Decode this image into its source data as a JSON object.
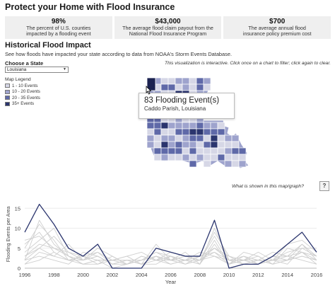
{
  "page_title": "Protect your Home with Flood Insurance",
  "stats": [
    {
      "value": "98%",
      "desc_line1": "The percent of U.S. counties",
      "desc_line2": "impacted by a flooding event"
    },
    {
      "value": "$43,000",
      "desc_line1": "The average flood claim payout from the",
      "desc_line2": "National Flood Insurance Program"
    },
    {
      "value": "$700",
      "desc_line1": "The average annual flood",
      "desc_line2": "insurance policy premium cost"
    }
  ],
  "section": {
    "title": "Historical Flood Impact",
    "subtitle": "See how floods have impacted your state according to data from NOAA's Storm Events Database."
  },
  "state_picker": {
    "label": "Choose a State",
    "selected": "Louisiana"
  },
  "interactive_note": "This visualization is interactive. Click once on a chart to filter; click again to clear.",
  "legend": {
    "title": "Map Legend",
    "items": [
      {
        "label": "1 - 10 Events",
        "color": "#d6d7e6"
      },
      {
        "label": "10 - 20 Events",
        "color": "#9ea3cd"
      },
      {
        "label": "20 - 35 Events",
        "color": "#5f69a8"
      },
      {
        "label": "35+ Events",
        "color": "#2b356e"
      }
    ]
  },
  "tooltip": {
    "main": "83 Flooding Event(s)",
    "sub": "Caddo Parish, Louisiana"
  },
  "help": {
    "text": "What is shown in this map/graph?",
    "icon_label": "?"
  },
  "chart_data": {
    "type": "line",
    "xlabel": "Year",
    "ylabel": "Flooding Events per Area",
    "ylim": [
      0,
      17
    ],
    "yticks": [
      0,
      5,
      10,
      15
    ],
    "xticks": [
      1996,
      1998,
      2000,
      2002,
      2004,
      2006,
      2008,
      2010,
      2012,
      2014,
      2016
    ],
    "x": [
      1996,
      1997,
      1998,
      1999,
      2000,
      2001,
      2002,
      2003,
      2004,
      2005,
      2006,
      2007,
      2008,
      2009,
      2010,
      2011,
      2012,
      2013,
      2014,
      2015,
      2016
    ],
    "highlight_color": "#2b356e",
    "background_color": "#cfcfcf",
    "series": [
      {
        "highlight": true,
        "values": [
          9,
          16,
          11,
          5,
          3,
          6,
          0,
          0,
          0,
          5,
          4,
          3,
          3,
          12,
          0,
          1,
          1,
          3,
          6,
          9,
          4
        ]
      },
      {
        "values": [
          3,
          5,
          8,
          4,
          2,
          3,
          1,
          2,
          1,
          3,
          2,
          1,
          2,
          5,
          2,
          3,
          1,
          2,
          3,
          4,
          3
        ]
      },
      {
        "values": [
          2,
          12,
          6,
          3,
          1,
          2,
          0,
          1,
          2,
          4,
          3,
          2,
          1,
          7,
          1,
          2,
          2,
          1,
          2,
          3,
          2
        ]
      },
      {
        "values": [
          6,
          9,
          4,
          2,
          3,
          1,
          2,
          3,
          1,
          2,
          4,
          3,
          2,
          9,
          3,
          1,
          2,
          2,
          4,
          5,
          5
        ]
      },
      {
        "values": [
          1,
          4,
          3,
          6,
          2,
          4,
          1,
          1,
          3,
          2,
          1,
          2,
          3,
          4,
          2,
          2,
          1,
          3,
          2,
          6,
          3
        ]
      },
      {
        "values": [
          4,
          7,
          10,
          3,
          1,
          2,
          2,
          2,
          2,
          3,
          2,
          4,
          1,
          6,
          1,
          4,
          3,
          1,
          5,
          4,
          2
        ]
      },
      {
        "values": [
          2,
          3,
          2,
          1,
          4,
          3,
          1,
          2,
          1,
          1,
          3,
          2,
          4,
          3,
          2,
          1,
          2,
          4,
          3,
          2,
          1
        ]
      },
      {
        "values": [
          5,
          11,
          7,
          2,
          2,
          5,
          3,
          1,
          2,
          4,
          2,
          3,
          2,
          8,
          2,
          2,
          1,
          2,
          6,
          7,
          4
        ]
      },
      {
        "values": [
          3,
          6,
          5,
          4,
          3,
          2,
          2,
          3,
          4,
          2,
          3,
          1,
          3,
          5,
          3,
          2,
          3,
          1,
          2,
          3,
          2
        ]
      },
      {
        "values": [
          1,
          2,
          4,
          2,
          1,
          1,
          3,
          1,
          2,
          3,
          1,
          2,
          2,
          4,
          1,
          3,
          2,
          2,
          1,
          5,
          3
        ]
      },
      {
        "values": [
          7,
          8,
          5,
          3,
          2,
          3,
          1,
          2,
          1,
          6,
          2,
          2,
          1,
          10,
          2,
          1,
          1,
          3,
          3,
          6,
          2
        ]
      },
      {
        "values": [
          2,
          5,
          3,
          2,
          3,
          4,
          2,
          1,
          3,
          2,
          2,
          3,
          2,
          3,
          1,
          2,
          4,
          2,
          2,
          4,
          1
        ]
      }
    ]
  }
}
